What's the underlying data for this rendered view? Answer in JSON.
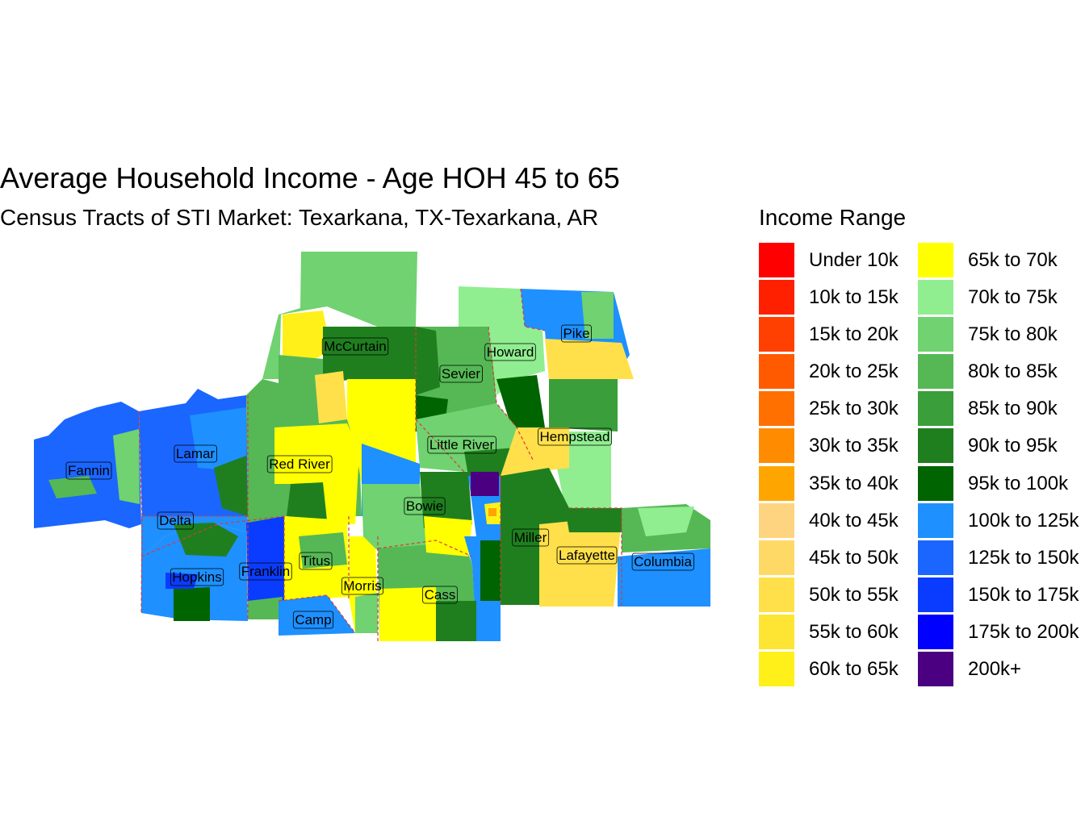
{
  "title": "Average Household Income - Age HOH 45 to 65",
  "subtitle": "Census Tracts of STI Market: Texarkana, TX-Texarkana, AR",
  "legend": {
    "title": "Income Range",
    "items": [
      {
        "label": "Under 10k",
        "color": "#FF0000"
      },
      {
        "label": "10k to 15k",
        "color": "#FF2000"
      },
      {
        "label": "15k to 20k",
        "color": "#FF4000"
      },
      {
        "label": "20k to 25k",
        "color": "#FF5A00"
      },
      {
        "label": "25k to 30k",
        "color": "#FF7000"
      },
      {
        "label": "30k to 35k",
        "color": "#FF8C00"
      },
      {
        "label": "35k to 40k",
        "color": "#FFA500"
      },
      {
        "label": "40k to 45k",
        "color": "#FFD480"
      },
      {
        "label": "45k to 50k",
        "color": "#FFD966"
      },
      {
        "label": "50k to 55k",
        "color": "#FFE04A"
      },
      {
        "label": "55k to 60k",
        "color": "#FFE533"
      },
      {
        "label": "60k to 65k",
        "color": "#FFF01A"
      },
      {
        "label": "65k to 70k",
        "color": "#FFFF00"
      },
      {
        "label": "70k to 75k",
        "color": "#90EE90"
      },
      {
        "label": "75k to 80k",
        "color": "#70D270"
      },
      {
        "label": "80k to 85k",
        "color": "#55B855"
      },
      {
        "label": "85k to 90k",
        "color": "#3A9E3A"
      },
      {
        "label": "90k to 95k",
        "color": "#1F7F1F"
      },
      {
        "label": "95k to 100k",
        "color": "#006400"
      },
      {
        "label": "100k to 125k",
        "color": "#1E90FF"
      },
      {
        "label": "125k to 150k",
        "color": "#1A66FF"
      },
      {
        "label": "150k to 175k",
        "color": "#0A3CFF"
      },
      {
        "label": "175k to 200k",
        "color": "#0000FF"
      },
      {
        "label": "200k+",
        "color": "#4B0082"
      }
    ]
  },
  "counties": [
    "Fannin",
    "Lamar",
    "Delta",
    "Hopkins",
    "Franklin",
    "Titus",
    "Camp",
    "Morris",
    "Red River",
    "McCurtain",
    "Sevier",
    "Howard",
    "Pike",
    "Little River",
    "Hempstead",
    "Bowie",
    "Cass",
    "Miller",
    "Lafayette",
    "Columbia"
  ]
}
